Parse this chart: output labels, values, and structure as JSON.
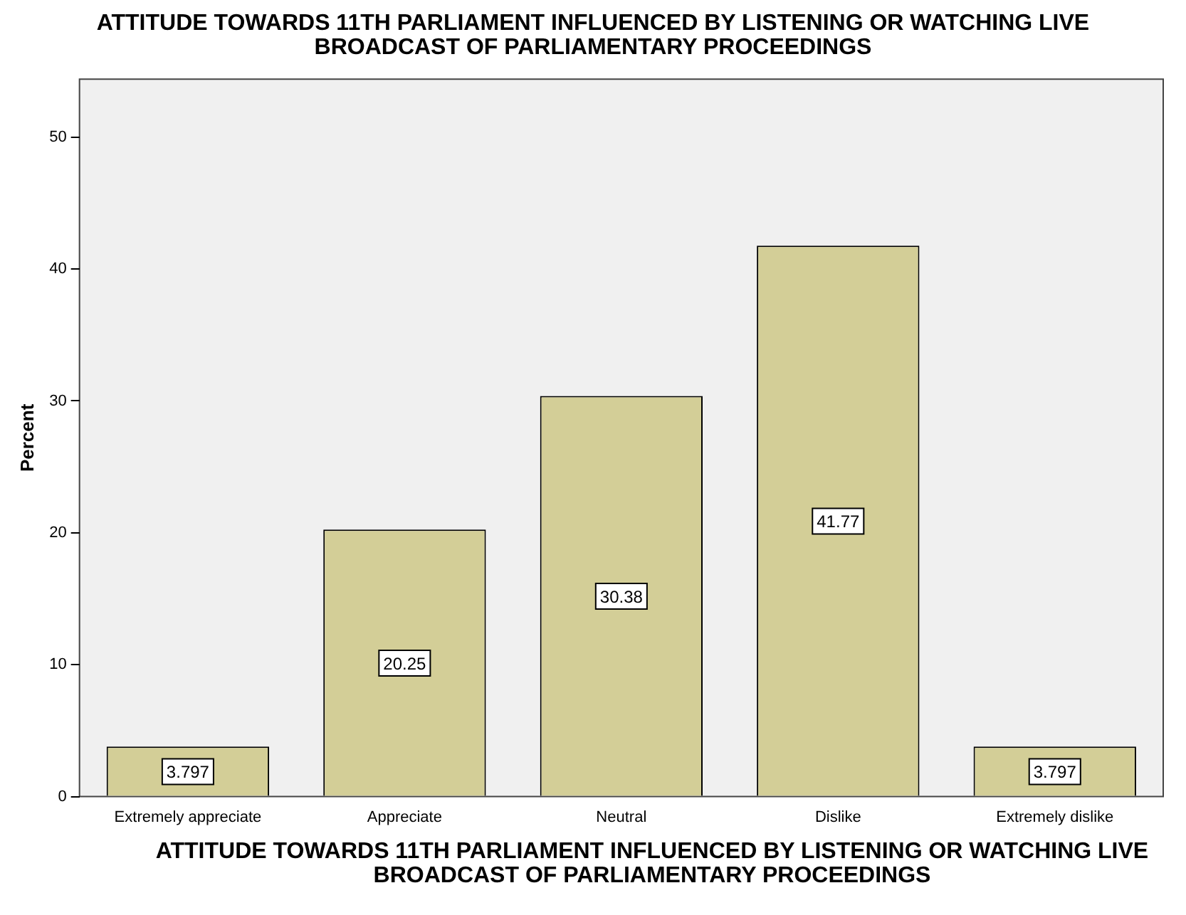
{
  "chart_data": {
    "type": "bar",
    "title": "ATTITUDE TOWARDS 11TH PARLIAMENT INFLUENCED BY LISTENING OR WATCHING LIVE BROADCAST OF PARLIAMENTARY PROCEEDINGS",
    "xlabel": "ATTITUDE TOWARDS 11TH PARLIAMENT INFLUENCED BY LISTENING OR WATCHING LIVE BROADCAST OF PARLIAMENTARY PROCEEDINGS",
    "ylabel": "Percent",
    "categories": [
      "Extremely appreciate",
      "Appreciate",
      "Neutral",
      "Dislike",
      "Extremely dislike"
    ],
    "values": [
      3.797,
      20.25,
      30.38,
      41.77,
      3.797
    ],
    "color": "#d3ce97",
    "ylim": [
      0,
      54.4
    ],
    "yticks": [
      0,
      10,
      20,
      30,
      40,
      50
    ],
    "data_labels": true,
    "grid": false,
    "legend": false
  }
}
